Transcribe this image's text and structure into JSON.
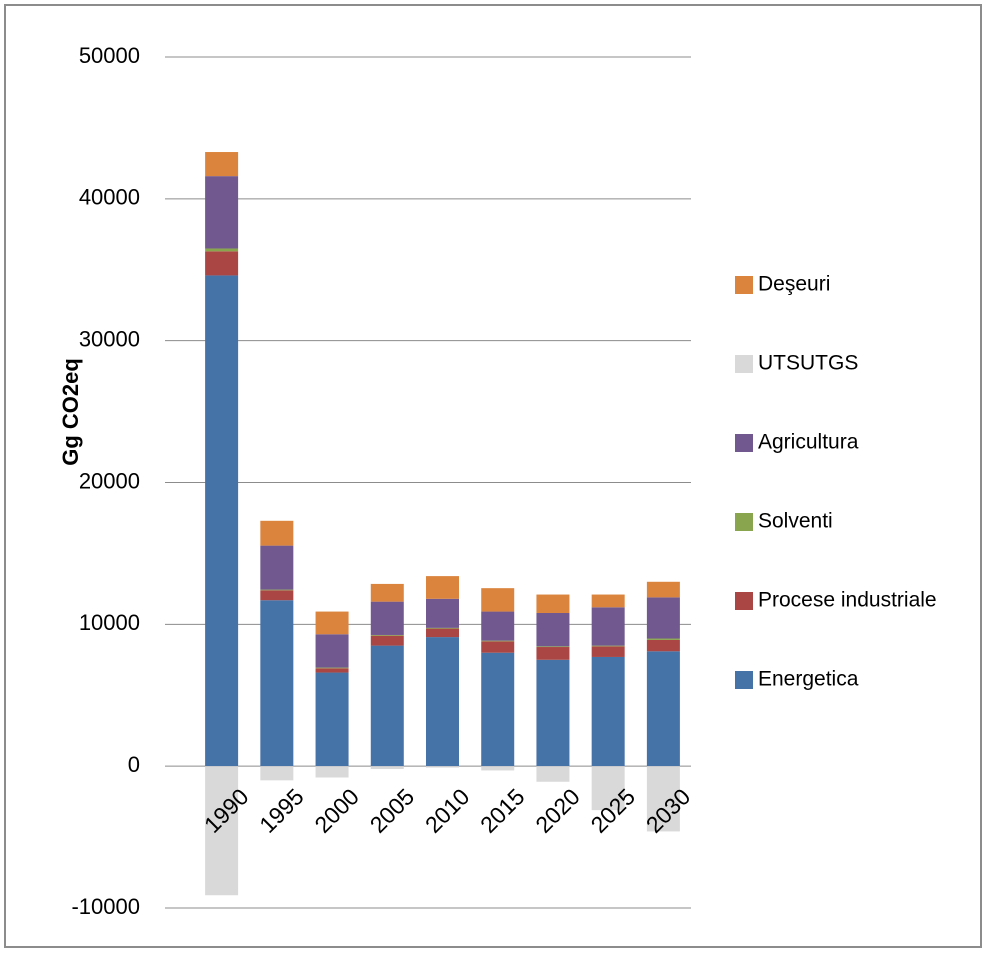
{
  "chart_data": {
    "type": "stacked_bar",
    "y_label": "Gg CO2eq",
    "categories": [
      "1990",
      "1995",
      "2000",
      "2005",
      "2010",
      "2015",
      "2020",
      "2025",
      "2030"
    ],
    "series": [
      {
        "name": "Energetica",
        "color": "#4572a7",
        "values": [
          34600,
          11700,
          6600,
          8500,
          9100,
          8000,
          7500,
          7700,
          8100
        ]
      },
      {
        "name": "Procese industriale",
        "color": "#aa4643",
        "values": [
          1700,
          700,
          300,
          700,
          600,
          800,
          900,
          750,
          800
        ]
      },
      {
        "name": "Solventi",
        "color": "#89a54e",
        "values": [
          200,
          50,
          50,
          50,
          50,
          50,
          50,
          50,
          100
        ]
      },
      {
        "name": "Agricultura",
        "color": "#71588f",
        "values": [
          5100,
          3100,
          2350,
          2350,
          2050,
          2050,
          2350,
          2700,
          2900
        ]
      },
      {
        "name": "UTSUTGS",
        "color": "#d9d9d9",
        "values": [
          -9100,
          -1000,
          -800,
          -200,
          -100,
          -300,
          -1100,
          -3100,
          -4600
        ]
      },
      {
        "name": "Deşeuri",
        "color": "#db843d",
        "values": [
          1700,
          1750,
          1600,
          1250,
          1600,
          1650,
          1300,
          900,
          1100
        ]
      }
    ],
    "ylim": [
      -10000,
      50000
    ],
    "yticks": [
      -10000,
      0,
      10000,
      20000,
      30000,
      40000,
      50000
    ],
    "grid": true,
    "legend": "right"
  }
}
